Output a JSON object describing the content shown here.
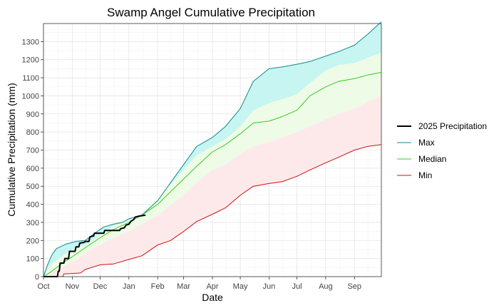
{
  "chart_data": {
    "type": "line",
    "title": "Swamp Angel Cumulative Precipitation",
    "xlabel": "Date",
    "ylabel": "Cumulative Precipitation (mm)",
    "xlim": [
      "2024-10-01",
      "2025-09-30"
    ],
    "ylim": [
      0,
      1400
    ],
    "x_ticks": [
      "2024-10-01",
      "2024-11-01",
      "2024-12-01",
      "2025-01-01",
      "2025-02-01",
      "2025-03-01",
      "2025-04-01",
      "2025-05-01",
      "2025-06-01",
      "2025-07-01",
      "2025-08-01",
      "2025-09-01"
    ],
    "x_tick_labels": [
      "Oct",
      "Nov",
      "Dec",
      "Jan",
      "Feb",
      "Mar",
      "Apr",
      "May",
      "Jun",
      "Jul",
      "Aug",
      "Sep"
    ],
    "y_ticks": [
      0,
      100,
      200,
      300,
      400,
      500,
      600,
      700,
      800,
      900,
      1000,
      1100,
      1200,
      1300
    ],
    "grid": true,
    "legend_position": "right",
    "colors": {
      "max": "#17868c",
      "median": "#33cc22",
      "min": "#cc1111",
      "current": "#000000",
      "band_upper": "#c6f5f2",
      "band_mid": "#eefbe6",
      "band_lower": "#fde9ea"
    },
    "legend": [
      {
        "key": "current",
        "label": "2025 Precipitation"
      },
      {
        "key": "max",
        "label": "Max"
      },
      {
        "key": "median",
        "label": "Median"
      },
      {
        "key": "min",
        "label": "Min"
      }
    ],
    "series": [
      {
        "name": "2025 Precipitation",
        "key": "current",
        "points": [
          [
            "2024-10-01",
            0
          ],
          [
            "2024-10-16",
            0
          ],
          [
            "2024-10-17",
            30
          ],
          [
            "2024-10-18",
            30
          ],
          [
            "2024-10-19",
            75
          ],
          [
            "2024-10-23",
            75
          ],
          [
            "2024-10-24",
            100
          ],
          [
            "2024-10-28",
            100
          ],
          [
            "2024-10-29",
            140
          ],
          [
            "2024-11-04",
            140
          ],
          [
            "2024-11-05",
            165
          ],
          [
            "2024-11-08",
            165
          ],
          [
            "2024-11-09",
            185
          ],
          [
            "2024-11-14",
            190
          ],
          [
            "2024-11-15",
            195
          ],
          [
            "2024-11-19",
            195
          ],
          [
            "2024-11-20",
            220
          ],
          [
            "2024-11-24",
            225
          ],
          [
            "2024-11-25",
            240
          ],
          [
            "2024-12-05",
            240
          ],
          [
            "2024-12-06",
            255
          ],
          [
            "2024-12-22",
            255
          ],
          [
            "2024-12-23",
            265
          ],
          [
            "2024-12-27",
            270
          ],
          [
            "2024-12-29",
            285
          ],
          [
            "2025-01-01",
            290
          ],
          [
            "2025-01-03",
            305
          ],
          [
            "2025-01-06",
            315
          ],
          [
            "2025-01-08",
            330
          ],
          [
            "2025-01-12",
            335
          ],
          [
            "2025-01-19",
            340
          ]
        ]
      },
      {
        "name": "Max",
        "key": "max",
        "points": [
          [
            "2024-10-01",
            0
          ],
          [
            "2024-10-05",
            60
          ],
          [
            "2024-10-10",
            120
          ],
          [
            "2024-10-15",
            155
          ],
          [
            "2024-10-25",
            180
          ],
          [
            "2024-11-05",
            195
          ],
          [
            "2024-11-15",
            200
          ],
          [
            "2024-11-25",
            240
          ],
          [
            "2024-12-05",
            275
          ],
          [
            "2024-12-15",
            290
          ],
          [
            "2024-12-25",
            300
          ],
          [
            "2025-01-01",
            320
          ],
          [
            "2025-01-15",
            340
          ],
          [
            "2025-02-01",
            420
          ],
          [
            "2025-02-15",
            520
          ],
          [
            "2025-03-01",
            620
          ],
          [
            "2025-03-15",
            720
          ],
          [
            "2025-04-01",
            770
          ],
          [
            "2025-04-15",
            830
          ],
          [
            "2025-05-01",
            930
          ],
          [
            "2025-05-15",
            1080
          ],
          [
            "2025-06-01",
            1150
          ],
          [
            "2025-06-15",
            1160
          ],
          [
            "2025-07-01",
            1175
          ],
          [
            "2025-07-15",
            1190
          ],
          [
            "2025-08-01",
            1220
          ],
          [
            "2025-08-15",
            1245
          ],
          [
            "2025-09-01",
            1280
          ],
          [
            "2025-09-15",
            1340
          ],
          [
            "2025-09-30",
            1410
          ]
        ]
      },
      {
        "name": "Median",
        "key": "median",
        "points": [
          [
            "2024-10-01",
            0
          ],
          [
            "2024-10-10",
            30
          ],
          [
            "2024-10-20",
            70
          ],
          [
            "2024-11-01",
            110
          ],
          [
            "2024-11-15",
            160
          ],
          [
            "2024-12-01",
            215
          ],
          [
            "2024-12-15",
            260
          ],
          [
            "2025-01-01",
            300
          ],
          [
            "2025-01-15",
            340
          ],
          [
            "2025-02-01",
            400
          ],
          [
            "2025-02-15",
            470
          ],
          [
            "2025-03-01",
            540
          ],
          [
            "2025-03-15",
            610
          ],
          [
            "2025-04-01",
            690
          ],
          [
            "2025-04-15",
            730
          ],
          [
            "2025-05-01",
            790
          ],
          [
            "2025-05-15",
            850
          ],
          [
            "2025-06-01",
            860
          ],
          [
            "2025-06-15",
            885
          ],
          [
            "2025-07-01",
            920
          ],
          [
            "2025-07-15",
            1000
          ],
          [
            "2025-08-01",
            1050
          ],
          [
            "2025-08-15",
            1080
          ],
          [
            "2025-09-01",
            1095
          ],
          [
            "2025-09-15",
            1115
          ],
          [
            "2025-09-30",
            1130
          ]
        ]
      },
      {
        "name": "Min",
        "key": "min",
        "points": [
          [
            "2024-10-01",
            0
          ],
          [
            "2024-10-22",
            0
          ],
          [
            "2024-10-23",
            15
          ],
          [
            "2024-11-10",
            20
          ],
          [
            "2024-11-15",
            40
          ],
          [
            "2024-12-01",
            65
          ],
          [
            "2024-12-15",
            70
          ],
          [
            "2025-01-01",
            95
          ],
          [
            "2025-01-15",
            115
          ],
          [
            "2025-02-01",
            175
          ],
          [
            "2025-02-15",
            200
          ],
          [
            "2025-03-01",
            250
          ],
          [
            "2025-03-15",
            305
          ],
          [
            "2025-04-01",
            345
          ],
          [
            "2025-04-15",
            380
          ],
          [
            "2025-05-01",
            450
          ],
          [
            "2025-05-15",
            500
          ],
          [
            "2025-06-01",
            515
          ],
          [
            "2025-06-15",
            525
          ],
          [
            "2025-07-01",
            555
          ],
          [
            "2025-07-15",
            590
          ],
          [
            "2025-08-01",
            630
          ],
          [
            "2025-08-15",
            660
          ],
          [
            "2025-09-01",
            700
          ],
          [
            "2025-09-15",
            720
          ],
          [
            "2025-09-30",
            730
          ]
        ]
      }
    ],
    "bands": [
      {
        "key": "band_upper",
        "upper": [
          [
            "2024-10-01",
            0
          ],
          [
            "2024-10-10",
            70
          ],
          [
            "2024-10-20",
            110
          ],
          [
            "2024-11-01",
            150
          ],
          [
            "2024-11-15",
            175
          ],
          [
            "2024-12-01",
            230
          ],
          [
            "2024-12-15",
            280
          ],
          [
            "2025-01-01",
            310
          ],
          [
            "2025-01-15",
            350
          ],
          [
            "2025-02-01",
            440
          ],
          [
            "2025-02-15",
            510
          ],
          [
            "2025-03-01",
            590
          ],
          [
            "2025-03-15",
            670
          ],
          [
            "2025-04-01",
            720
          ],
          [
            "2025-04-15",
            760
          ],
          [
            "2025-05-01",
            830
          ],
          [
            "2025-05-15",
            920
          ],
          [
            "2025-06-01",
            960
          ],
          [
            "2025-06-15",
            980
          ],
          [
            "2025-07-01",
            1010
          ],
          [
            "2025-07-15",
            1070
          ],
          [
            "2025-08-01",
            1140
          ],
          [
            "2025-08-15",
            1170
          ],
          [
            "2025-09-01",
            1180
          ],
          [
            "2025-09-15",
            1210
          ],
          [
            "2025-09-30",
            1240
          ]
        ]
      },
      {
        "key": "band_lower",
        "upper": [
          [
            "2024-10-01",
            0
          ],
          [
            "2024-10-15",
            40
          ],
          [
            "2024-11-01",
            80
          ],
          [
            "2024-11-15",
            130
          ],
          [
            "2024-12-01",
            175
          ],
          [
            "2024-12-15",
            215
          ],
          [
            "2025-01-01",
            250
          ],
          [
            "2025-01-15",
            290
          ],
          [
            "2025-02-01",
            340
          ],
          [
            "2025-02-15",
            395
          ],
          [
            "2025-03-01",
            450
          ],
          [
            "2025-03-15",
            520
          ],
          [
            "2025-04-01",
            590
          ],
          [
            "2025-04-15",
            620
          ],
          [
            "2025-05-01",
            680
          ],
          [
            "2025-05-15",
            720
          ],
          [
            "2025-06-01",
            745
          ],
          [
            "2025-06-15",
            770
          ],
          [
            "2025-07-01",
            800
          ],
          [
            "2025-07-15",
            830
          ],
          [
            "2025-08-01",
            870
          ],
          [
            "2025-08-15",
            900
          ],
          [
            "2025-09-01",
            930
          ],
          [
            "2025-09-15",
            965
          ],
          [
            "2025-09-30",
            1000
          ]
        ]
      }
    ]
  }
}
